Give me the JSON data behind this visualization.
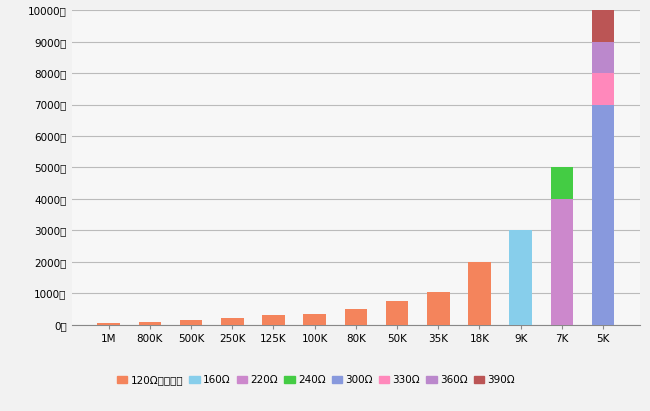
{
  "categories": [
    "1M",
    "800K",
    "500K",
    "250K",
    "125K",
    "100K",
    "80K",
    "50K",
    "35K",
    "18K",
    "9K",
    "7K",
    "5K"
  ],
  "series": [
    {
      "name": "120Ω匹配电队",
      "color": "#F4845C",
      "values": [
        50,
        100,
        150,
        200,
        300,
        350,
        500,
        750,
        1050,
        2000,
        0,
        0,
        0
      ]
    },
    {
      "name": "160Ω",
      "color": "#87CEEB",
      "values": [
        0,
        0,
        0,
        0,
        0,
        0,
        0,
        0,
        0,
        0,
        3000,
        0,
        0
      ]
    },
    {
      "name": "220Ω",
      "color": "#CC88CC",
      "values": [
        0,
        0,
        0,
        0,
        0,
        0,
        0,
        0,
        0,
        0,
        0,
        4000,
        0
      ]
    },
    {
      "name": "240Ω",
      "color": "#44CC44",
      "values": [
        0,
        0,
        0,
        0,
        0,
        0,
        0,
        0,
        0,
        0,
        0,
        1000,
        0
      ]
    },
    {
      "name": "300Ω",
      "color": "#8899DD",
      "values": [
        0,
        0,
        0,
        0,
        0,
        0,
        0,
        0,
        0,
        0,
        0,
        0,
        7000
      ]
    },
    {
      "name": "330Ω",
      "color": "#FF88BB",
      "values": [
        0,
        0,
        0,
        0,
        0,
        0,
        0,
        0,
        0,
        0,
        0,
        0,
        1000
      ]
    },
    {
      "name": "360Ω",
      "color": "#BB88CC",
      "values": [
        0,
        0,
        0,
        0,
        0,
        0,
        0,
        0,
        0,
        0,
        0,
        0,
        1000
      ]
    },
    {
      "name": "390Ω",
      "color": "#BB5555",
      "values": [
        0,
        0,
        0,
        0,
        0,
        0,
        0,
        0,
        0,
        0,
        0,
        0,
        1000
      ]
    }
  ],
  "ylim": [
    0,
    10000
  ],
  "ytick_values": [
    0,
    1000,
    2000,
    3000,
    4000,
    5000,
    6000,
    7000,
    8000,
    9000,
    10000
  ],
  "ytick_labels": [
    "0米",
    "1000米",
    "2000米",
    "3000米",
    "4000米",
    "5000米",
    "6000米",
    "7000米",
    "8000米",
    "9000米",
    "10000米"
  ],
  "background_color": "#F2F2F2",
  "plot_bg_color": "#F7F7F7",
  "grid_color": "#BBBBBB",
  "bar_width": 0.55,
  "legend_fontsize": 7.5,
  "tick_fontsize": 7.5
}
